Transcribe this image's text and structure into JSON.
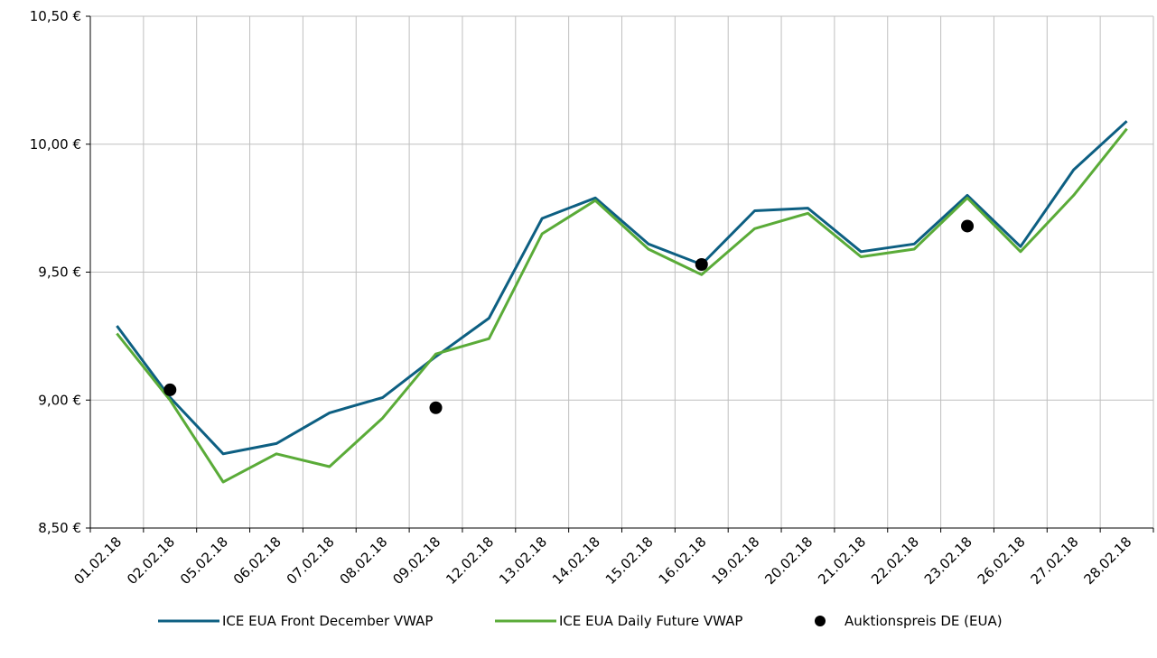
{
  "chart_data": {
    "type": "line",
    "categories": [
      "01.02.18",
      "02.02.18",
      "05.02.18",
      "06.02.18",
      "07.02.18",
      "08.02.18",
      "09.02.18",
      "12.02.18",
      "13.02.18",
      "14.02.18",
      "15.02.18",
      "16.02.18",
      "19.02.18",
      "20.02.18",
      "21.02.18",
      "22.02.18",
      "23.02.18",
      "26.02.18",
      "27.02.18",
      "28.02.18"
    ],
    "series": [
      {
        "name": "ICE EUA Front December VWAP",
        "color": "#0d5f82",
        "kind": "line",
        "values": [
          9.29,
          9.01,
          8.79,
          8.83,
          8.95,
          9.01,
          9.17,
          9.32,
          9.71,
          9.79,
          9.61,
          9.53,
          9.74,
          9.75,
          9.58,
          9.61,
          9.8,
          9.6,
          9.9,
          10.09
        ]
      },
      {
        "name": "ICE EUA Daily Future VWAP",
        "color": "#5aab38",
        "kind": "line",
        "values": [
          9.26,
          9.0,
          8.68,
          8.79,
          8.74,
          8.93,
          9.18,
          9.24,
          9.65,
          9.78,
          9.59,
          9.49,
          9.67,
          9.73,
          9.56,
          9.59,
          9.79,
          9.58,
          9.8,
          10.06
        ]
      },
      {
        "name": "Auktionspreis DE (EUA)",
        "color": "#000000",
        "kind": "scatter",
        "points": [
          {
            "category": "02.02.18",
            "value": 9.04
          },
          {
            "category": "09.02.18",
            "value": 8.97
          },
          {
            "category": "16.02.18",
            "value": 9.53
          },
          {
            "category": "23.02.18",
            "value": 9.68
          }
        ]
      }
    ],
    "ylim": [
      8.5,
      10.5
    ],
    "yticks": [
      {
        "value": 8.5,
        "label": "8,50 €"
      },
      {
        "value": 9.0,
        "label": "9,00 €"
      },
      {
        "value": 9.5,
        "label": "9,50 €"
      },
      {
        "value": 10.0,
        "label": "10,00 €"
      },
      {
        "value": 10.5,
        "label": "10,50 €"
      }
    ],
    "grid": true,
    "legend_position": "bottom"
  }
}
